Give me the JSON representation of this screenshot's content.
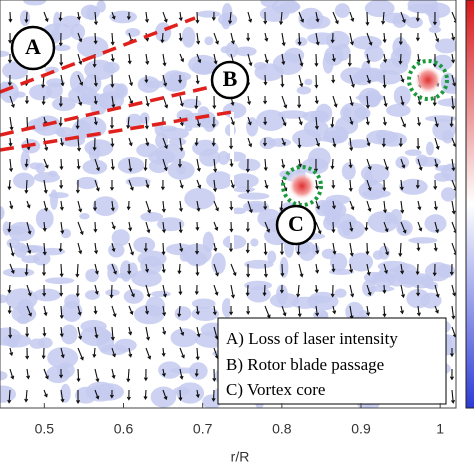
{
  "chart_data": {
    "type": "quiver",
    "xlabel": "r/R",
    "xlim": [
      0.444,
      1.02
    ],
    "xticks": [
      0.5,
      0.6,
      0.7,
      0.8,
      0.9,
      1
    ],
    "markers": [
      "A",
      "B",
      "C"
    ],
    "legend": [
      "A) Loss of laser intensity",
      "B) Rotor blade passage",
      "C) Vortex core"
    ]
  }
}
